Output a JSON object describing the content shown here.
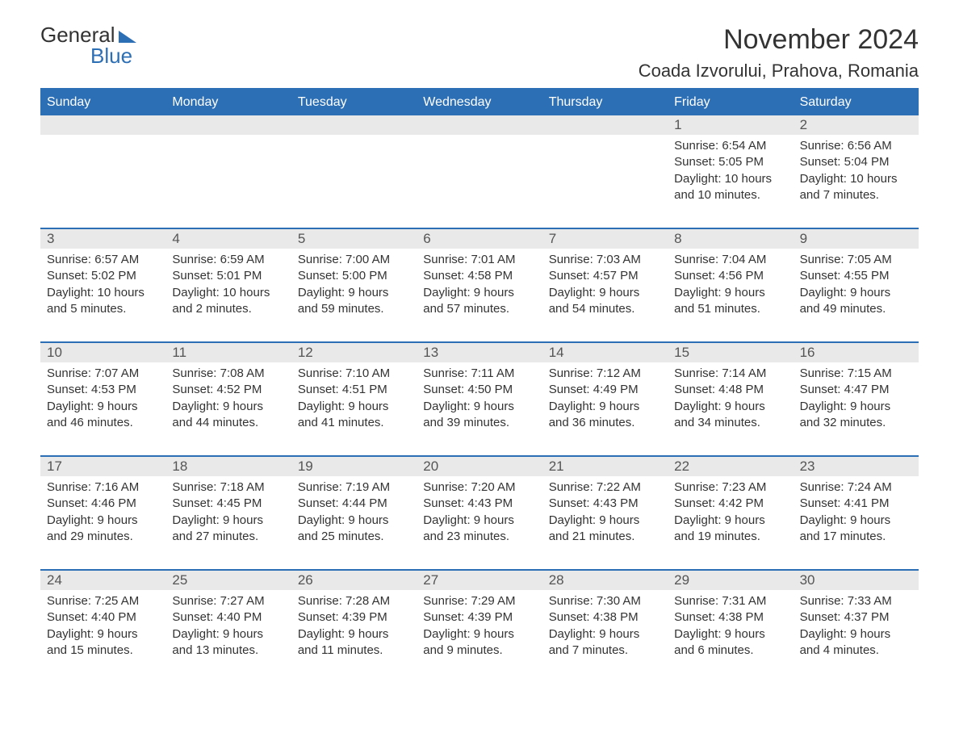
{
  "logo": {
    "text_general": "General",
    "text_blue": "Blue"
  },
  "title": "November 2024",
  "location": "Coada Izvorului, Prahova, Romania",
  "colors": {
    "header_bg": "#2d6fb5",
    "header_text": "#ffffff",
    "day_strip_bg": "#e9e9e9",
    "text": "#333333",
    "border": "#2d6fb5",
    "background": "#ffffff"
  },
  "weekdays": [
    "Sunday",
    "Monday",
    "Tuesday",
    "Wednesday",
    "Thursday",
    "Friday",
    "Saturday"
  ],
  "weeks": [
    [
      {
        "empty": true
      },
      {
        "empty": true
      },
      {
        "empty": true
      },
      {
        "empty": true
      },
      {
        "empty": true
      },
      {
        "day": "1",
        "sunrise": "Sunrise: 6:54 AM",
        "sunset": "Sunset: 5:05 PM",
        "daylight": "Daylight: 10 hours and 10 minutes."
      },
      {
        "day": "2",
        "sunrise": "Sunrise: 6:56 AM",
        "sunset": "Sunset: 5:04 PM",
        "daylight": "Daylight: 10 hours and 7 minutes."
      }
    ],
    [
      {
        "day": "3",
        "sunrise": "Sunrise: 6:57 AM",
        "sunset": "Sunset: 5:02 PM",
        "daylight": "Daylight: 10 hours and 5 minutes."
      },
      {
        "day": "4",
        "sunrise": "Sunrise: 6:59 AM",
        "sunset": "Sunset: 5:01 PM",
        "daylight": "Daylight: 10 hours and 2 minutes."
      },
      {
        "day": "5",
        "sunrise": "Sunrise: 7:00 AM",
        "sunset": "Sunset: 5:00 PM",
        "daylight": "Daylight: 9 hours and 59 minutes."
      },
      {
        "day": "6",
        "sunrise": "Sunrise: 7:01 AM",
        "sunset": "Sunset: 4:58 PM",
        "daylight": "Daylight: 9 hours and 57 minutes."
      },
      {
        "day": "7",
        "sunrise": "Sunrise: 7:03 AM",
        "sunset": "Sunset: 4:57 PM",
        "daylight": "Daylight: 9 hours and 54 minutes."
      },
      {
        "day": "8",
        "sunrise": "Sunrise: 7:04 AM",
        "sunset": "Sunset: 4:56 PM",
        "daylight": "Daylight: 9 hours and 51 minutes."
      },
      {
        "day": "9",
        "sunrise": "Sunrise: 7:05 AM",
        "sunset": "Sunset: 4:55 PM",
        "daylight": "Daylight: 9 hours and 49 minutes."
      }
    ],
    [
      {
        "day": "10",
        "sunrise": "Sunrise: 7:07 AM",
        "sunset": "Sunset: 4:53 PM",
        "daylight": "Daylight: 9 hours and 46 minutes."
      },
      {
        "day": "11",
        "sunrise": "Sunrise: 7:08 AM",
        "sunset": "Sunset: 4:52 PM",
        "daylight": "Daylight: 9 hours and 44 minutes."
      },
      {
        "day": "12",
        "sunrise": "Sunrise: 7:10 AM",
        "sunset": "Sunset: 4:51 PM",
        "daylight": "Daylight: 9 hours and 41 minutes."
      },
      {
        "day": "13",
        "sunrise": "Sunrise: 7:11 AM",
        "sunset": "Sunset: 4:50 PM",
        "daylight": "Daylight: 9 hours and 39 minutes."
      },
      {
        "day": "14",
        "sunrise": "Sunrise: 7:12 AM",
        "sunset": "Sunset: 4:49 PM",
        "daylight": "Daylight: 9 hours and 36 minutes."
      },
      {
        "day": "15",
        "sunrise": "Sunrise: 7:14 AM",
        "sunset": "Sunset: 4:48 PM",
        "daylight": "Daylight: 9 hours and 34 minutes."
      },
      {
        "day": "16",
        "sunrise": "Sunrise: 7:15 AM",
        "sunset": "Sunset: 4:47 PM",
        "daylight": "Daylight: 9 hours and 32 minutes."
      }
    ],
    [
      {
        "day": "17",
        "sunrise": "Sunrise: 7:16 AM",
        "sunset": "Sunset: 4:46 PM",
        "daylight": "Daylight: 9 hours and 29 minutes."
      },
      {
        "day": "18",
        "sunrise": "Sunrise: 7:18 AM",
        "sunset": "Sunset: 4:45 PM",
        "daylight": "Daylight: 9 hours and 27 minutes."
      },
      {
        "day": "19",
        "sunrise": "Sunrise: 7:19 AM",
        "sunset": "Sunset: 4:44 PM",
        "daylight": "Daylight: 9 hours and 25 minutes."
      },
      {
        "day": "20",
        "sunrise": "Sunrise: 7:20 AM",
        "sunset": "Sunset: 4:43 PM",
        "daylight": "Daylight: 9 hours and 23 minutes."
      },
      {
        "day": "21",
        "sunrise": "Sunrise: 7:22 AM",
        "sunset": "Sunset: 4:43 PM",
        "daylight": "Daylight: 9 hours and 21 minutes."
      },
      {
        "day": "22",
        "sunrise": "Sunrise: 7:23 AM",
        "sunset": "Sunset: 4:42 PM",
        "daylight": "Daylight: 9 hours and 19 minutes."
      },
      {
        "day": "23",
        "sunrise": "Sunrise: 7:24 AM",
        "sunset": "Sunset: 4:41 PM",
        "daylight": "Daylight: 9 hours and 17 minutes."
      }
    ],
    [
      {
        "day": "24",
        "sunrise": "Sunrise: 7:25 AM",
        "sunset": "Sunset: 4:40 PM",
        "daylight": "Daylight: 9 hours and 15 minutes."
      },
      {
        "day": "25",
        "sunrise": "Sunrise: 7:27 AM",
        "sunset": "Sunset: 4:40 PM",
        "daylight": "Daylight: 9 hours and 13 minutes."
      },
      {
        "day": "26",
        "sunrise": "Sunrise: 7:28 AM",
        "sunset": "Sunset: 4:39 PM",
        "daylight": "Daylight: 9 hours and 11 minutes."
      },
      {
        "day": "27",
        "sunrise": "Sunrise: 7:29 AM",
        "sunset": "Sunset: 4:39 PM",
        "daylight": "Daylight: 9 hours and 9 minutes."
      },
      {
        "day": "28",
        "sunrise": "Sunrise: 7:30 AM",
        "sunset": "Sunset: 4:38 PM",
        "daylight": "Daylight: 9 hours and 7 minutes."
      },
      {
        "day": "29",
        "sunrise": "Sunrise: 7:31 AM",
        "sunset": "Sunset: 4:38 PM",
        "daylight": "Daylight: 9 hours and 6 minutes."
      },
      {
        "day": "30",
        "sunrise": "Sunrise: 7:33 AM",
        "sunset": "Sunset: 4:37 PM",
        "daylight": "Daylight: 9 hours and 4 minutes."
      }
    ]
  ]
}
